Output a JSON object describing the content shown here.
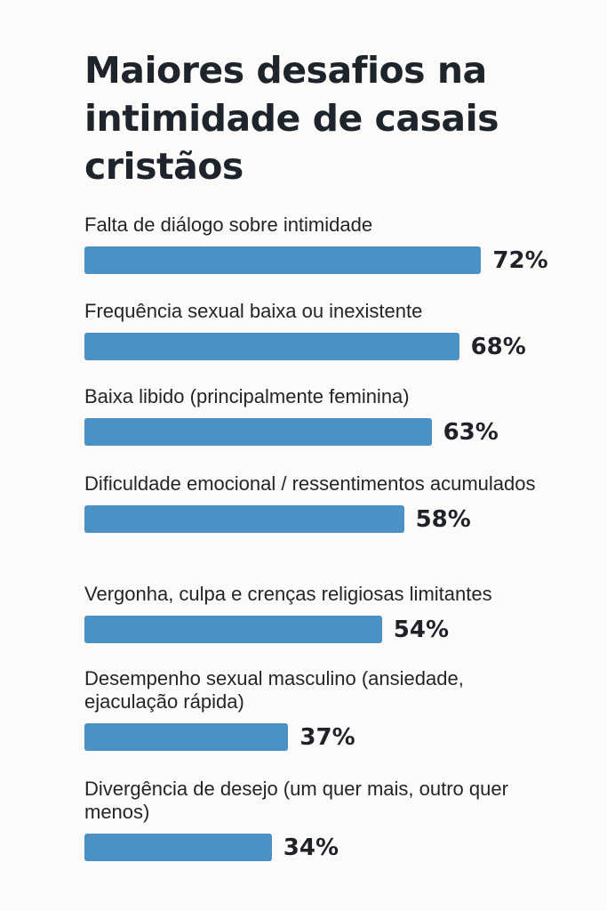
{
  "chart_data": {
    "type": "bar",
    "orientation": "horizontal",
    "title": "Maiores desafios na intimidade de casais cristãos",
    "xlabel": "",
    "ylabel": "",
    "grid": false,
    "legend": "none",
    "bar_color": "#4a91c6",
    "unit": "%",
    "xlim": [
      0,
      100
    ],
    "categories": [
      "Falta de diálogo sobre intimidade",
      "Frequência sexual baixa ou inexistente",
      "Baixa libido (principalmente feminina)",
      "Dificuldade emocional / ressentimentos acumulados",
      "Vergonha, culpa e crenças religiosas limitantes",
      "Desempenho sexual masculino (ansiedade, ejaculação rápida)",
      "Divergência de desejo (um quer mais, outro quer menos)"
    ],
    "values": [
      72,
      68,
      63,
      58,
      54,
      37,
      34
    ],
    "data_labels": [
      "72%",
      "68%",
      "63%",
      "58%",
      "54%",
      "37%",
      "34%"
    ]
  },
  "colors": {
    "background": "#fcfbfa",
    "bar": "#4a91c6",
    "text": "#1f2329"
  }
}
